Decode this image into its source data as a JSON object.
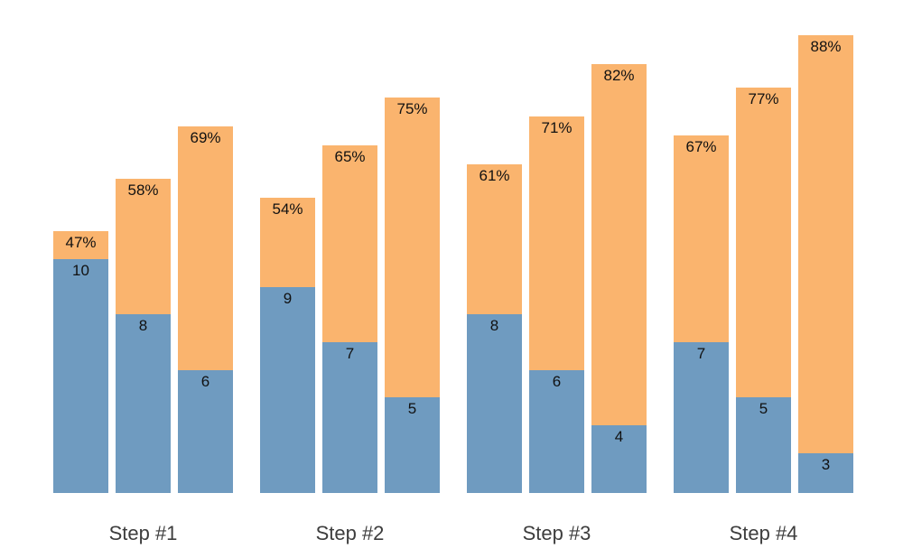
{
  "chart_data": {
    "type": "bar",
    "subtype": "stacked",
    "title": "",
    "xlabel": "",
    "ylabel": "",
    "legend": "none",
    "axes_visible": false,
    "grid": false,
    "background": "#ffffff",
    "categories": [
      "Step #1",
      "Step #2",
      "Step #3",
      "Step #4"
    ],
    "series": [
      {
        "name": "bottom-count",
        "color": "#6f9bc0",
        "values": [
          10,
          8,
          6,
          9,
          7,
          5,
          8,
          6,
          4,
          7,
          5,
          3
        ]
      },
      {
        "name": "top-percentage",
        "color": "#fab46e",
        "values": [
          47,
          58,
          69,
          54,
          65,
          75,
          61,
          71,
          82,
          67,
          77,
          88
        ]
      }
    ],
    "colors": {
      "bottom_segment": "#6f9bc0",
      "top_segment": "#fab46e",
      "bar_label": "#111111",
      "axis_label": "#3d3d3d"
    },
    "groups": [
      {
        "label": "Step #1",
        "bars": [
          {
            "pct": 47,
            "pct_label": "47%",
            "value": 10
          },
          {
            "pct": 58,
            "pct_label": "58%",
            "value": 8
          },
          {
            "pct": 69,
            "pct_label": "69%",
            "value": 6
          }
        ]
      },
      {
        "label": "Step #2",
        "bars": [
          {
            "pct": 54,
            "pct_label": "54%",
            "value": 9
          },
          {
            "pct": 65,
            "pct_label": "65%",
            "value": 7
          },
          {
            "pct": 75,
            "pct_label": "75%",
            "value": 5
          }
        ]
      },
      {
        "label": "Step #3",
        "bars": [
          {
            "pct": 61,
            "pct_label": "61%",
            "value": 8
          },
          {
            "pct": 71,
            "pct_label": "71%",
            "value": 6
          },
          {
            "pct": 82,
            "pct_label": "82%",
            "value": 4
          }
        ]
      },
      {
        "label": "Step #4",
        "bars": [
          {
            "pct": 67,
            "pct_label": "67%",
            "value": 7
          },
          {
            "pct": 77,
            "pct_label": "77%",
            "value": 5
          },
          {
            "pct": 88,
            "pct_label": "88%",
            "value": 3
          }
        ]
      }
    ]
  }
}
